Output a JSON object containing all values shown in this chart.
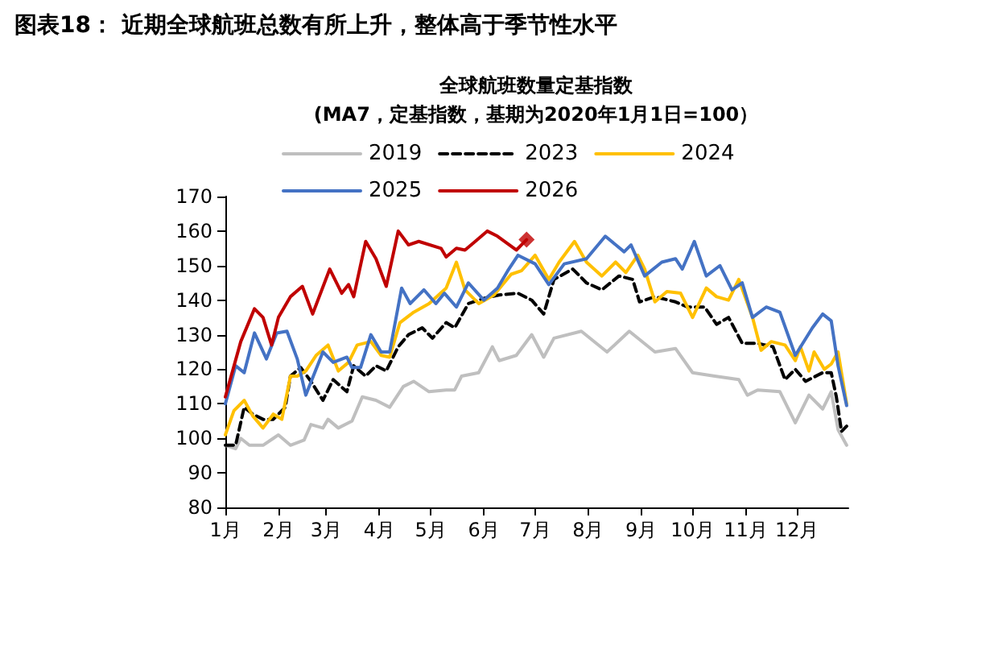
{
  "chart_data": {
    "type": "line",
    "title": "图表18： 近期全球航班总数有所上升，整体高于季节性水平",
    "subtitle": "全球航班数量定基指数\n(MA7，定基指数，基期为2020年1月1日=100）",
    "xlim": [
      "--01-01",
      "--12-31"
    ],
    "xticks": [
      {
        "value": "--01-01",
        "label": "1月"
      },
      {
        "value": "--02-01",
        "label": "2月"
      },
      {
        "value": "--03-01",
        "label": "3月"
      },
      {
        "value": "--04-01",
        "label": "4月"
      },
      {
        "value": "--05-01",
        "label": "5月"
      },
      {
        "value": "--06-01",
        "label": "6月"
      },
      {
        "value": "--07-01",
        "label": "7月"
      },
      {
        "value": "--08-01",
        "label": "8月"
      },
      {
        "value": "--09-01",
        "label": "9月"
      },
      {
        "value": "--10-01",
        "label": "10月"
      },
      {
        "value": "--11-01",
        "label": "11月"
      },
      {
        "value": "--12-01",
        "label": "12月"
      }
    ],
    "ylim": [
      80,
      170
    ],
    "yticks": [
      80,
      90,
      100,
      110,
      120,
      130,
      140,
      150,
      160,
      170
    ],
    "grid": false,
    "legend": "top",
    "series": [
      {
        "name": "2019",
        "color": "#bfbfbf",
        "line_style": "solid",
        "x": [
          "--01-01",
          "--01-07",
          "--01-10",
          "--01-15",
          "--01-23",
          "--01-29",
          "--02-01",
          "--02-08",
          "--02-16",
          "--02-20",
          "--02-27",
          "--03-02",
          "--03-08",
          "--03-16",
          "--03-22",
          "--03-30",
          "--04-07",
          "--04-15",
          "--04-21",
          "--04-30",
          "--05-10",
          "--05-15",
          "--05-19",
          "--05-29",
          "--06-06",
          "--06-10",
          "--06-20",
          "--06-29",
          "--07-06",
          "--07-12",
          "--07-28",
          "--08-12",
          "--08-25",
          "--09-09",
          "--09-21",
          "--10-01",
          "--10-14",
          "--10-28",
          "--11-02",
          "--11-08",
          "--11-21",
          "--11-30",
          "--12-08",
          "--12-16",
          "--12-21",
          "--12-25",
          "--12-30"
        ],
        "values": [
          98,
          97,
          100,
          98,
          98,
          100,
          101,
          98,
          99.5,
          104,
          103,
          105.5,
          103,
          105,
          112,
          111,
          109,
          115,
          116.5,
          113.5,
          114,
          114,
          118,
          119,
          126.5,
          122.5,
          124,
          130,
          123.5,
          129,
          131,
          125,
          131,
          125,
          126,
          119,
          118,
          117,
          112.5,
          114,
          113.5,
          104.5,
          112.5,
          108.5,
          113.5,
          102.5,
          98
        ]
      },
      {
        "name": "2023",
        "color": "#000000",
        "line_style": "dashed",
        "x": [
          "--01-01",
          "--01-07",
          "--01-12",
          "--01-17",
          "--01-23",
          "--01-29",
          "--02-05",
          "--02-08",
          "--02-14",
          "--02-20",
          "--02-27",
          "--03-05",
          "--03-13",
          "--03-17",
          "--03-24",
          "--03-30",
          "--04-05",
          "--04-12",
          "--04-18",
          "--04-26",
          "--05-02",
          "--05-10",
          "--05-15",
          "--05-23",
          "--06-01",
          "--06-10",
          "--06-21",
          "--06-29",
          "--07-06",
          "--07-12",
          "--07-23",
          "--07-31",
          "--08-09",
          "--08-19",
          "--08-27",
          "--08-31",
          "--09-09",
          "--09-21",
          "--09-28",
          "--10-08",
          "--10-15",
          "--10-22",
          "--10-30",
          "--11-08",
          "--11-17",
          "--11-24",
          "--11-30",
          "--12-06",
          "--12-16",
          "--12-21",
          "--12-24",
          "--12-27",
          "--12-30"
        ],
        "values": [
          98,
          98,
          109,
          107,
          105.5,
          105.5,
          109,
          118,
          120.5,
          116.5,
          111,
          117,
          113.5,
          121,
          118,
          121,
          119.5,
          126.5,
          130,
          132,
          129,
          133.5,
          132,
          139,
          140.5,
          141.5,
          142,
          140,
          136,
          146,
          149,
          145,
          143,
          147,
          146,
          139.5,
          141,
          139.5,
          138,
          138,
          133,
          135,
          127.5,
          127.5,
          126.5,
          117,
          120,
          116.5,
          119,
          119,
          112,
          102,
          103.5
        ]
      },
      {
        "name": "2024",
        "color": "#ffc000",
        "line_style": "solid",
        "x": [
          "--01-01",
          "--01-06",
          "--01-12",
          "--01-17",
          "--01-23",
          "--01-29",
          "--02-03",
          "--02-08",
          "--02-12",
          "--02-17",
          "--02-23",
          "--03-02",
          "--03-08",
          "--03-14",
          "--03-19",
          "--03-27",
          "--04-02",
          "--04-07",
          "--04-13",
          "--04-21",
          "--04-30",
          "--05-10",
          "--05-16",
          "--05-21",
          "--05-29",
          "--06-07",
          "--06-17",
          "--06-23",
          "--07-01",
          "--07-09",
          "--07-15",
          "--07-24",
          "--07-31",
          "--08-09",
          "--08-17",
          "--08-23",
          "--08-30",
          "--09-03",
          "--09-09",
          "--09-16",
          "--09-24",
          "--10-01",
          "--10-09",
          "--10-15",
          "--10-22",
          "--10-28",
          "--11-05",
          "--11-10",
          "--11-16",
          "--11-24",
          "--11-30",
          "--12-03",
          "--12-08",
          "--12-11",
          "--12-17",
          "--12-21",
          "--12-25",
          "--12-30"
        ],
        "values": [
          101,
          108,
          111,
          106.5,
          103,
          107,
          105.5,
          118,
          118,
          119.5,
          124,
          127,
          119.5,
          122,
          127,
          128,
          124,
          123.5,
          133.5,
          136.5,
          139,
          143.5,
          151,
          143,
          139,
          141.5,
          147.5,
          148.5,
          153,
          146,
          151,
          157,
          151,
          147,
          151,
          148,
          153,
          149,
          139.5,
          142.5,
          142,
          135,
          143.5,
          141,
          140,
          146,
          135,
          125.5,
          128,
          127,
          122.5,
          126.5,
          119.5,
          125,
          120,
          121.5,
          125,
          110
        ]
      },
      {
        "name": "2025",
        "color": "#4472c4",
        "line_style": "solid",
        "x": [
          "--01-01",
          "--01-07",
          "--01-12",
          "--01-18",
          "--01-25",
          "--01-31",
          "--02-06",
          "--02-12",
          "--02-17",
          "--02-27",
          "--03-05",
          "--03-13",
          "--03-16",
          "--03-21",
          "--03-27",
          "--04-02",
          "--04-07",
          "--04-14",
          "--04-19",
          "--04-27",
          "--05-04",
          "--05-09",
          "--05-16",
          "--05-23",
          "--06-01",
          "--06-09",
          "--06-15",
          "--06-21",
          "--07-01",
          "--07-09",
          "--07-18",
          "--07-31",
          "--08-11",
          "--08-22",
          "--08-26",
          "--09-03",
          "--09-13",
          "--09-21",
          "--09-25",
          "--10-02",
          "--10-09",
          "--10-17",
          "--10-24",
          "--10-30",
          "--11-05",
          "--11-13",
          "--11-21",
          "--11-30",
          "--12-10",
          "--12-16",
          "--12-21",
          "--12-25",
          "--12-30"
        ],
        "values": [
          110,
          121,
          119,
          130.5,
          123,
          130.5,
          131,
          123,
          112.5,
          125,
          122,
          123.5,
          120.5,
          120.5,
          130,
          125,
          125,
          143.5,
          139,
          143,
          139,
          142,
          138,
          145,
          140,
          143.5,
          148.5,
          153,
          150.5,
          144.5,
          150.5,
          152,
          158.5,
          154,
          156,
          147,
          151,
          152,
          149,
          157,
          147,
          150,
          143,
          145,
          135,
          138,
          136.5,
          124,
          132,
          136,
          134,
          121,
          109.5
        ]
      },
      {
        "name": "2026",
        "color": "#c00000",
        "line_style": "solid",
        "x": [
          "--01-01",
          "--01-10",
          "--01-18",
          "--01-23",
          "--01-28",
          "--02-01",
          "--02-08",
          "--02-15",
          "--02-21",
          "--03-03",
          "--03-10",
          "--03-14",
          "--03-17",
          "--03-24",
          "--03-30",
          "--04-05",
          "--04-12",
          "--04-18",
          "--04-24",
          "--05-07",
          "--05-10",
          "--05-16",
          "--05-21",
          "--05-27",
          "--06-03",
          "--06-09",
          "--06-20",
          "--06-26"
        ],
        "values": [
          112,
          128,
          137.5,
          135,
          127,
          135,
          141,
          144,
          136,
          149,
          142,
          144.5,
          141,
          157,
          152,
          144,
          160,
          156,
          157,
          155,
          152.5,
          155,
          154.5,
          157,
          160,
          158.5,
          154.5,
          157.5
        ]
      },
      {
        "type": "scatter",
        "color": "#c00000",
        "marker": "diamond",
        "x": [
          "--06-26"
        ],
        "values": [
          157.5
        ]
      }
    ]
  }
}
